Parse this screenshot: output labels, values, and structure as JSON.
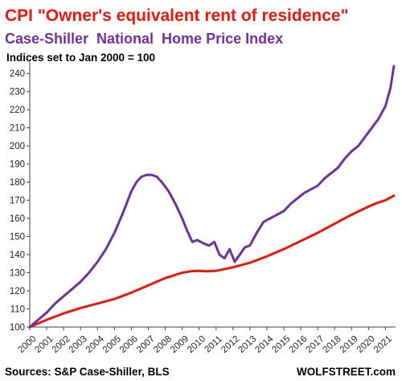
{
  "chart_data": {
    "type": "line",
    "title": "CPI \"Owner's equivalent rent of residence\"",
    "subtitle": "Case-Shiller  National  Home Price Index",
    "note": "Indices set to Jan 2000 = 100",
    "source": "Sources: S&P Case-Shiller, BLS",
    "watermark": "WOLFSTREET.com",
    "ylim": [
      100,
      245
    ],
    "yticks": [
      100,
      110,
      120,
      130,
      140,
      150,
      160,
      170,
      180,
      190,
      200,
      210,
      220,
      230,
      240
    ],
    "xlim": [
      2000,
      2021.6
    ],
    "xticks": [
      "2000",
      "2001",
      "2002",
      "2003",
      "2004",
      "2005",
      "2006",
      "2007",
      "2008",
      "2009",
      "2010",
      "2011",
      "2012",
      "2013",
      "2014",
      "2015",
      "2016",
      "2017",
      "2018",
      "2019",
      "2020",
      "2021"
    ],
    "grid": false,
    "colors": {
      "title": "#e8180c",
      "case_shiller": "#7030a0",
      "cpi": "#e8180c"
    },
    "series": [
      {
        "name": "Case-Shiller  National  Home Price Index",
        "color": "#7030a0",
        "x": [
          2000.0,
          2000.5,
          2001.0,
          2001.5,
          2002.0,
          2002.5,
          2003.0,
          2003.5,
          2004.0,
          2004.5,
          2005.0,
          2005.5,
          2006.0,
          2006.3,
          2006.6,
          2006.9,
          2007.2,
          2007.5,
          2007.8,
          2008.2,
          2008.6,
          2009.0,
          2009.3,
          2009.6,
          2009.9,
          2010.3,
          2010.6,
          2010.9,
          2011.2,
          2011.5,
          2011.8,
          2012.1,
          2012.4,
          2012.7,
          2013.0,
          2013.4,
          2013.8,
          2014.2,
          2014.6,
          2015.0,
          2015.4,
          2015.8,
          2016.2,
          2016.6,
          2017.0,
          2017.4,
          2017.8,
          2018.2,
          2018.6,
          2019.0,
          2019.4,
          2019.8,
          2020.2,
          2020.6,
          2021.0,
          2021.3,
          2021.5
        ],
        "values": [
          100,
          104,
          108,
          113,
          117,
          121,
          125,
          130,
          136,
          143,
          152,
          163,
          175,
          180,
          183,
          184,
          184,
          183,
          180,
          175,
          168,
          160,
          153,
          147,
          148,
          146,
          145,
          147,
          140,
          138,
          143,
          136,
          140,
          144,
          145,
          152,
          158,
          160,
          162,
          164,
          168,
          171,
          174,
          176,
          178,
          182,
          185,
          188,
          193,
          197,
          200,
          205,
          210,
          215,
          222,
          232,
          244
        ]
      },
      {
        "name": "CPI \"Owner's equivalent rent of residence\"",
        "color": "#e8180c",
        "x": [
          2000.0,
          2001.0,
          2002.0,
          2003.0,
          2004.0,
          2005.0,
          2006.0,
          2007.0,
          2008.0,
          2009.0,
          2009.5,
          2010.0,
          2010.5,
          2011.0,
          2012.0,
          2013.0,
          2014.0,
          2015.0,
          2016.0,
          2017.0,
          2018.0,
          2019.0,
          2020.0,
          2020.5,
          2021.0,
          2021.5
        ],
        "values": [
          100,
          104,
          107.5,
          110.5,
          113,
          115.5,
          119,
          123,
          127,
          130,
          130.8,
          131,
          130.8,
          131,
          133,
          135.5,
          139,
          143,
          147.5,
          152,
          157,
          162,
          166.5,
          168.5,
          170,
          172.5
        ]
      }
    ]
  }
}
